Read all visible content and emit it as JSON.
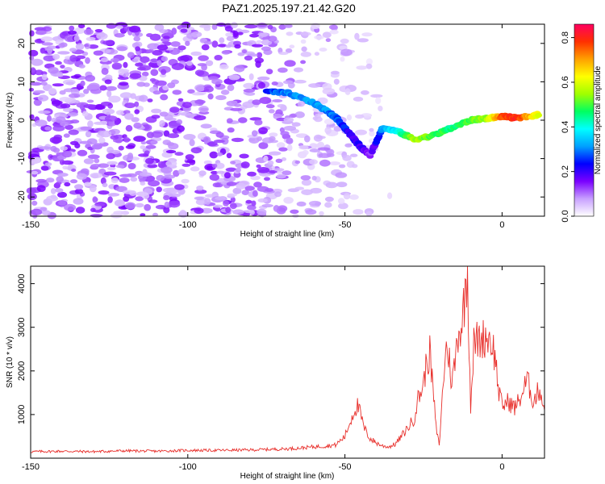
{
  "figure": {
    "title": "PAZ1.2025.197.21.42.G20"
  },
  "chart_data": [
    {
      "type": "heatmap",
      "title": "PAZ1.2025.197.21.42.G20",
      "xlabel": "Height of straight line (km)",
      "ylabel": "Frequency (Hz)",
      "xlim": [
        -150,
        13.5
      ],
      "ylim": [
        -25,
        25
      ],
      "x_ticks": [
        -150,
        -100,
        -50,
        0
      ],
      "y_ticks": [
        -20,
        -10,
        0,
        10,
        20
      ],
      "colorbar": {
        "label": "Normalized spectral amplitude",
        "range": [
          0,
          0.86
        ],
        "ticks": [
          0.0,
          0.2,
          0.4,
          0.6,
          0.8
        ],
        "colormap": [
          "#ffffff",
          "#c8a0ff",
          "#7a00ff",
          "#0000ff",
          "#00a0ff",
          "#00ffff",
          "#00ff60",
          "#a0ff00",
          "#ffff00",
          "#ffa000",
          "#ff3000",
          "#ff0060"
        ]
      },
      "ridge": {
        "description_points": [
          {
            "x": -75,
            "y": 7.5,
            "amp": 0.25
          },
          {
            "x": -68,
            "y": 7,
            "amp": 0.3
          },
          {
            "x": -60,
            "y": 4.5,
            "amp": 0.32
          },
          {
            "x": -55,
            "y": 2,
            "amp": 0.3
          },
          {
            "x": -52,
            "y": 0,
            "amp": 0.28
          },
          {
            "x": -48,
            "y": -4,
            "amp": 0.2
          },
          {
            "x": -45,
            "y": -7,
            "amp": 0.2
          },
          {
            "x": -42,
            "y": -9,
            "amp": 0.12
          },
          {
            "x": -38,
            "y": -2,
            "amp": 0.3
          },
          {
            "x": -33,
            "y": -3,
            "amp": 0.4
          },
          {
            "x": -28,
            "y": -5,
            "amp": 0.55
          },
          {
            "x": -22,
            "y": -4,
            "amp": 0.5
          },
          {
            "x": -16,
            "y": -2,
            "amp": 0.45
          },
          {
            "x": -10,
            "y": 0,
            "amp": 0.5
          },
          {
            "x": -5,
            "y": 0.5,
            "amp": 0.55
          },
          {
            "x": 0,
            "y": 1,
            "amp": 0.75
          },
          {
            "x": 5,
            "y": 0.5,
            "amp": 0.8
          },
          {
            "x": 12,
            "y": 1.5,
            "amp": 0.6
          }
        ]
      }
    },
    {
      "type": "line",
      "xlabel": "Height of straight line (km)",
      "ylabel": "SNR (10 * v/v)",
      "xlim": [
        -150,
        13.5
      ],
      "ylim": [
        0,
        4400
      ],
      "x_ticks": [
        -150,
        -100,
        -50,
        0
      ],
      "y_ticks": [
        1000,
        2000,
        3000,
        4000
      ],
      "color": "#e8302c",
      "series": [
        {
          "x": [
            -150,
            -140,
            -130,
            -120,
            -110,
            -100,
            -90,
            -80,
            -70,
            -65,
            -60,
            -56,
            -53,
            -50,
            -48,
            -47,
            -46,
            -45,
            -44,
            -42,
            -40,
            -38,
            -36,
            -34,
            -32,
            -30,
            -28,
            -27,
            -26,
            -25,
            -24,
            -23,
            -22,
            -21,
            -20,
            -19,
            -18,
            -17,
            -16,
            -15,
            -14,
            -13,
            -12,
            -11,
            -10,
            -9,
            -8,
            -7,
            -6,
            -5,
            -4,
            -3,
            -2,
            -1,
            0,
            2,
            4,
            6,
            8,
            10,
            12,
            13.5
          ],
          "y": [
            150,
            160,
            150,
            170,
            160,
            180,
            180,
            190,
            210,
            230,
            260,
            280,
            300,
            500,
            900,
            1100,
            1200,
            1000,
            700,
            450,
            350,
            280,
            260,
            320,
            500,
            700,
            900,
            1300,
            1500,
            1700,
            2200,
            2400,
            1600,
            700,
            300,
            1400,
            2500,
            2400,
            1700,
            2200,
            2900,
            3000,
            3600,
            4300,
            1200,
            2600,
            2700,
            2700,
            2750,
            2800,
            2750,
            2600,
            2200,
            1500,
            1200,
            1300,
            1150,
            1400,
            1800,
            1300,
            1600,
            1100
          ]
        }
      ]
    }
  ]
}
